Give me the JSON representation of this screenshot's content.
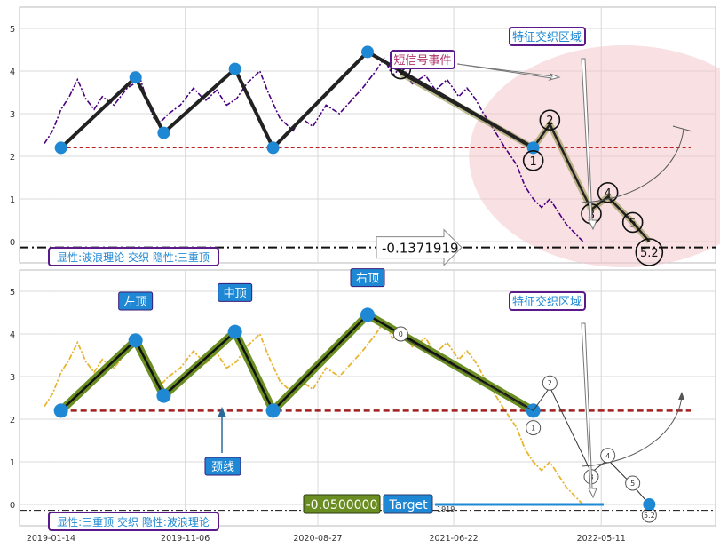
{
  "chart_data": [
    {
      "type": "line",
      "panel": "top",
      "ylim": [
        -0.5,
        5.5
      ],
      "yticks": [
        "0",
        "1",
        "2",
        "3",
        "4",
        "5"
      ],
      "grid": true,
      "price_series": [
        [
          2019.0,
          2.3
        ],
        [
          2019.05,
          2.6
        ],
        [
          2019.1,
          3.1
        ],
        [
          2019.15,
          3.4
        ],
        [
          2019.2,
          3.8
        ],
        [
          2019.25,
          3.35
        ],
        [
          2019.3,
          3.1
        ],
        [
          2019.35,
          3.4
        ],
        [
          2019.42,
          3.2
        ],
        [
          2019.5,
          3.6
        ],
        [
          2019.58,
          3.8
        ],
        [
          2019.62,
          3.3
        ],
        [
          2019.66,
          2.9
        ],
        [
          2019.7,
          2.8
        ],
        [
          2019.75,
          3.0
        ],
        [
          2019.82,
          3.2
        ],
        [
          2019.9,
          3.6
        ],
        [
          2019.97,
          3.3
        ],
        [
          2020.04,
          3.55
        ],
        [
          2020.1,
          3.2
        ],
        [
          2020.16,
          3.35
        ],
        [
          2020.22,
          3.7
        ],
        [
          2020.3,
          4.0
        ],
        [
          2020.35,
          3.5
        ],
        [
          2020.42,
          2.9
        ],
        [
          2020.5,
          2.6
        ],
        [
          2020.55,
          2.9
        ],
        [
          2020.62,
          2.7
        ],
        [
          2020.7,
          3.2
        ],
        [
          2020.78,
          3.0
        ],
        [
          2020.85,
          3.3
        ],
        [
          2020.92,
          3.6
        ],
        [
          2021.0,
          4.0
        ],
        [
          2021.05,
          4.3
        ],
        [
          2021.1,
          3.9
        ],
        [
          2021.16,
          4.1
        ],
        [
          2021.22,
          3.7
        ],
        [
          2021.3,
          3.9
        ],
        [
          2021.36,
          3.55
        ],
        [
          2021.43,
          3.8
        ],
        [
          2021.5,
          3.4
        ],
        [
          2021.55,
          3.6
        ],
        [
          2021.6,
          3.35
        ],
        [
          2021.65,
          3.0
        ],
        [
          2021.7,
          2.7
        ],
        [
          2021.78,
          2.2
        ],
        [
          2021.85,
          1.8
        ],
        [
          2021.9,
          1.3
        ],
        [
          2021.95,
          1.0
        ],
        [
          2022.0,
          0.8
        ],
        [
          2022.05,
          1.0
        ],
        [
          2022.1,
          0.7
        ],
        [
          2022.15,
          0.4
        ],
        [
          2022.2,
          0.2
        ],
        [
          2022.25,
          0.0
        ]
      ],
      "wave_points": [
        [
          2019.1,
          2.2
        ],
        [
          2019.55,
          3.85
        ],
        [
          2019.72,
          2.55
        ],
        [
          2020.15,
          4.05
        ],
        [
          2020.38,
          2.2
        ],
        [
          2020.95,
          4.45
        ],
        [
          2021.95,
          2.2
        ]
      ],
      "neckline": {
        "y": 2.2,
        "from": 2019.1,
        "to": 2023.0
      },
      "wave_labels": [
        {
          "label": "0",
          "x": 2021.15,
          "y": 4.05
        },
        {
          "label": "1",
          "x": 2021.95,
          "y": 1.9
        },
        {
          "label": "2",
          "x": 2022.05,
          "y": 2.85
        },
        {
          "label": "3",
          "x": 2022.3,
          "y": 0.65
        },
        {
          "label": "4",
          "x": 2022.4,
          "y": 1.15
        },
        {
          "label": "5",
          "x": 2022.55,
          "y": 0.45
        },
        {
          "label": "5.2",
          "x": 2022.65,
          "y": -0.25
        }
      ],
      "annotations": {
        "signal_event": "短信号事件",
        "feature_zone": "特征交织区域",
        "price_tag": "-0.1371919",
        "legend": "显性:波浪理论 交织 隐性:三重顶"
      }
    },
    {
      "type": "line",
      "panel": "bottom",
      "ylim": [
        -0.5,
        5.5
      ],
      "yticks": [
        "0",
        "1",
        "2",
        "3",
        "4",
        "5"
      ],
      "xticks": [
        "2019-01-14",
        "2019-11-06",
        "2020-08-27",
        "2021-06-22",
        "2022-05-11"
      ],
      "grid": true,
      "pattern_points": [
        [
          2019.1,
          2.2
        ],
        [
          2019.55,
          3.85
        ],
        [
          2019.72,
          2.55
        ],
        [
          2020.15,
          4.05
        ],
        [
          2020.38,
          2.2
        ],
        [
          2020.95,
          4.45
        ],
        [
          2021.95,
          2.2
        ]
      ],
      "tops": [
        {
          "label": "左顶",
          "x": 2019.55,
          "y": 4.75
        },
        {
          "label": "中顶",
          "x": 2020.15,
          "y": 4.95
        },
        {
          "label": "右顶",
          "x": 2020.95,
          "y": 5.3
        }
      ],
      "neckline_label": "颈线",
      "wave_labels": [
        {
          "label": "0",
          "x": 2021.15,
          "y": 4.0
        },
        {
          "label": "1",
          "x": 2021.95,
          "y": 1.8
        },
        {
          "label": "2",
          "x": 2022.05,
          "y": 2.85
        },
        {
          "label": "3",
          "x": 2022.3,
          "y": 0.65
        },
        {
          "label": "4",
          "x": 2022.4,
          "y": 1.15
        },
        {
          "label": "5",
          "x": 2022.55,
          "y": 0.5
        },
        {
          "label": "5.2",
          "x": 2022.65,
          "y": -0.25
        }
      ],
      "annotations": {
        "feature_zone": "特征交织区域",
        "value_box": "-0.0500000",
        "target_label": "Target",
        "small_tag": "1919",
        "legend": "显性:三重顶 交织 隐性:波浪理论"
      }
    }
  ]
}
